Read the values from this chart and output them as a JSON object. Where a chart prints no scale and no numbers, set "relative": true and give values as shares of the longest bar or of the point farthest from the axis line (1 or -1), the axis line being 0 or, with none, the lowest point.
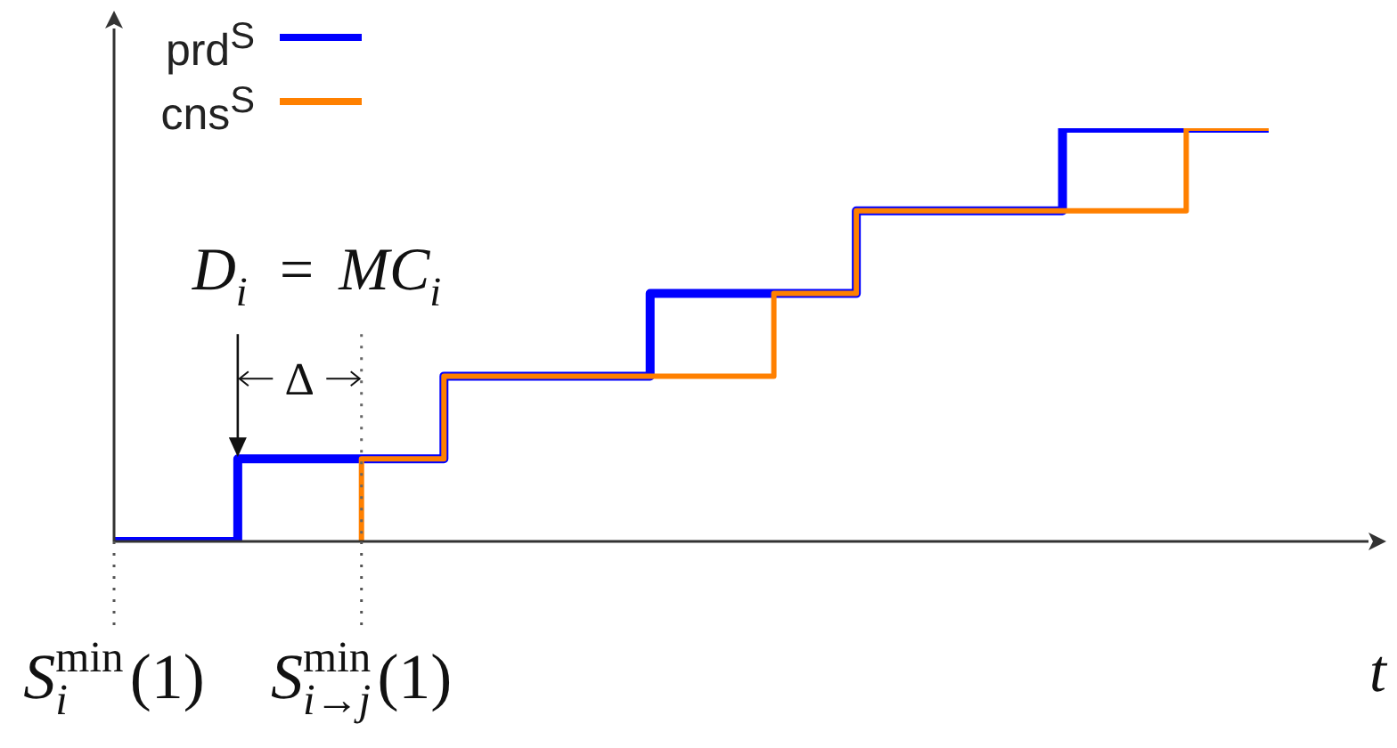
{
  "chart_data": {
    "type": "step",
    "xlabel": "t",
    "categories": [
      "S$_{i}$$^{min}$(1)",
      null,
      null,
      null,
      null,
      null,
      "S$_{i→j}$$^{min}$(1)",
      null,
      null,
      null,
      null,
      null,
      null,
      null,
      null,
      null,
      null,
      null,
      null,
      null,
      null,
      null,
      null,
      null,
      null,
      null,
      null,
      null,
      null
    ],
    "series": [
      {
        "name": "prd$^{S}$",
        "color": "#0000ff",
        "values": [
          0,
          0,
          0,
          0,
          0.2,
          0.2,
          0.2,
          0.2,
          0.2,
          0.4,
          0.4,
          0.4,
          0.4,
          0.4,
          0.6,
          0.6,
          0.6,
          0.6,
          0.6,
          0.8,
          0.8,
          0.8,
          0.8,
          0.8,
          1,
          1,
          1,
          1,
          1
        ]
      },
      {
        "name": "cns$^{S}$",
        "color": "#ff8000",
        "values": [
          null,
          null,
          null,
          null,
          null,
          null,
          0,
          0.2,
          0.2,
          0.4,
          0.4,
          0.4,
          0.4,
          0.4,
          0.4,
          0.4,
          0.4,
          0.6,
          0.6,
          0.8,
          0.8,
          0.8,
          0.8,
          0.8,
          0.8,
          0.8,
          0.8,
          1,
          1
        ]
      }
    ],
    "relative": true,
    "ref_lines": [
      {
        "axis": "x",
        "value": "S$_{i→j}$$^{min}$(1)",
        "color": "#666666",
        "line_style": "dotted"
      }
    ],
    "annotations": [
      "D$_{i}$ = MC$_{i}$",
      "Δ"
    ],
    "legend": "top left"
  }
}
